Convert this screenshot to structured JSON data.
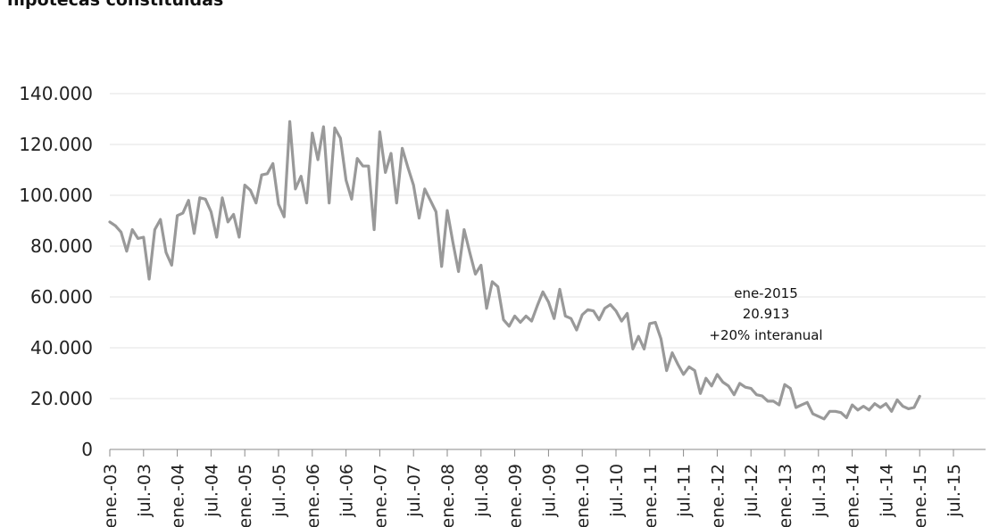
{
  "chart_data": {
    "type": "line",
    "title": "hipotecas constituidas",
    "xlabel": "",
    "ylabel": "",
    "ylim": [
      0,
      140000
    ],
    "yticks": [
      {
        "value": 0,
        "label": "0"
      },
      {
        "value": 20000,
        "label": "20.000"
      },
      {
        "value": 40000,
        "label": "40.000"
      },
      {
        "value": 60000,
        "label": "60.000"
      },
      {
        "value": 80000,
        "label": "80.000"
      },
      {
        "value": 100000,
        "label": "100.000"
      },
      {
        "value": 120000,
        "label": "120.000"
      },
      {
        "value": 140000,
        "label": "140.000"
      }
    ],
    "xtick_labels": [
      "ene.-03",
      "jul.-03",
      "ene.-04",
      "jul.-04",
      "ene.-05",
      "jul.-05",
      "ene.-06",
      "jul.-06",
      "ene.-07",
      "jul.-07",
      "ene.-08",
      "jul.-08",
      "ene.-09",
      "jul.-09",
      "ene.-10",
      "jul.-10",
      "ene.-11",
      "jul.-11",
      "ene.-12",
      "jul.-12",
      "ene.-13",
      "jul.-13",
      "ene.-14",
      "jul.-14",
      "ene.-15",
      "jul.-15"
    ],
    "grid": true,
    "series": [
      {
        "name": "Hipotecas constituidas",
        "color": "#999999",
        "start": "ene.-03",
        "values": [
          89500,
          88000,
          85500,
          78000,
          86500,
          83000,
          83500,
          67000,
          86500,
          90500,
          77500,
          72500,
          92000,
          93000,
          98000,
          85000,
          99000,
          98500,
          93500,
          83500,
          99000,
          89500,
          92500,
          83500,
          104000,
          102000,
          97000,
          108000,
          108500,
          112500,
          96500,
          91500,
          129000,
          102500,
          107500,
          97000,
          124500,
          114000,
          127000,
          97000,
          126500,
          122500,
          106000,
          98500,
          114500,
          111500,
          111500,
          86500,
          125000,
          109000,
          116500,
          97000,
          118500,
          111000,
          104000,
          91000,
          102500,
          98000,
          93500,
          72000,
          94000,
          81500,
          70000,
          86500,
          77500,
          69000,
          72500,
          55500,
          66000,
          64000,
          51000,
          48500,
          52500,
          50000,
          52500,
          50500,
          56500,
          62000,
          58000,
          51500,
          63000,
          52500,
          51500,
          47000,
          53000,
          55000,
          54500,
          51000,
          55500,
          57000,
          54500,
          50500,
          53500,
          39500,
          44500,
          39500,
          49500,
          50000,
          43500,
          31000,
          38000,
          33500,
          29500,
          32500,
          31000,
          22000,
          28000,
          25000,
          29500,
          26500,
          25000,
          21500,
          26000,
          24500,
          24000,
          21500,
          21000,
          19000,
          19000,
          17500,
          25500,
          24000,
          16500,
          17500,
          18500,
          14000,
          13000,
          12000,
          15000,
          15000,
          14500,
          12500,
          17500,
          15500,
          17000,
          15500,
          18000,
          16500,
          18000,
          15000,
          19500,
          17000,
          16000,
          16500,
          20913
        ]
      }
    ],
    "annotation": {
      "label": "ene-2015",
      "value": "20.913",
      "change": "+20% interanual",
      "change_color": "#2aa9e0"
    }
  }
}
